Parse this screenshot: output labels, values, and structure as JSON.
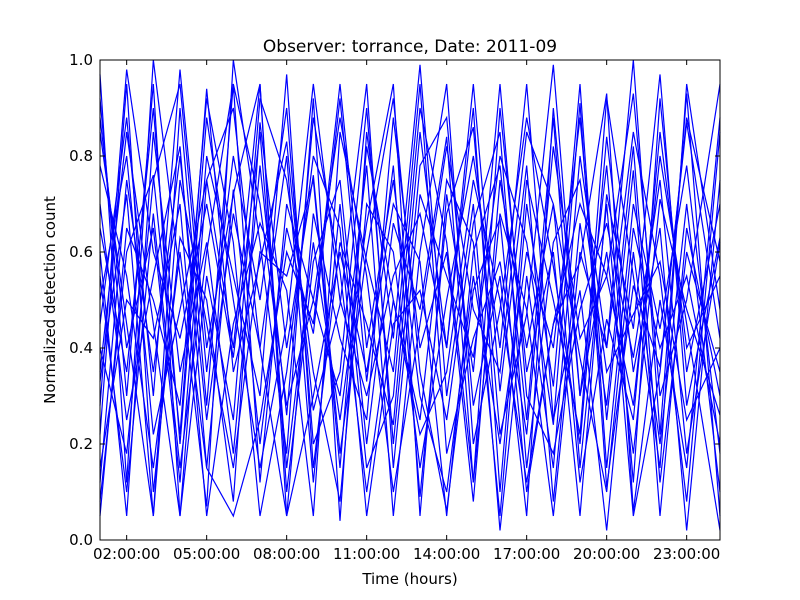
{
  "chart_data": {
    "type": "line",
    "title": "Observer: torrance, Date: 2011-09",
    "xlabel": "Time (hours)",
    "ylabel": "Normalized detection count",
    "x_tick_labels": [
      "02:00:00",
      "05:00:00",
      "08:00:00",
      "11:00:00",
      "14:00:00",
      "17:00:00",
      "20:00:00",
      "23:00:00"
    ],
    "y_tick_labels": [
      "0.0",
      "0.2",
      "0.4",
      "0.6",
      "0.8",
      "1.0"
    ],
    "ylim": [
      0,
      1
    ],
    "xlim_hours": [
      1.0,
      24.25
    ],
    "grid": false,
    "legend": "none",
    "series_color": "#0000ff",
    "x_hours": [
      1.0,
      2.0,
      3.0,
      4.0,
      5.0,
      6.0,
      7.0,
      8.0,
      9.0,
      10.0,
      11.0,
      12.0,
      13.0,
      14.0,
      15.0,
      16.0,
      17.0,
      18.0,
      19.0,
      20.0,
      21.0,
      22.0,
      23.0,
      24.25
    ],
    "series": [
      {
        "values": [
          0.97,
          0.12,
          1.0,
          0.55,
          0.07,
          1.0,
          0.62,
          0.18,
          0.92,
          0.04,
          0.85,
          0.42,
          0.99,
          0.3,
          0.7,
          0.02,
          0.55,
          0.15,
          0.8,
          0.4,
          1.0,
          0.22,
          0.93,
          0.05
        ]
      },
      {
        "values": [
          0.45,
          0.88,
          0.3,
          0.98,
          0.4,
          0.72,
          0.95,
          0.1,
          0.58,
          0.75,
          0.2,
          0.66,
          0.48,
          0.84,
          0.12,
          0.9,
          0.35,
          0.6,
          0.05,
          0.72,
          0.44,
          0.97,
          0.28,
          0.63
        ]
      },
      {
        "values": [
          0.08,
          0.6,
          0.76,
          0.22,
          0.94,
          0.35,
          0.58,
          0.83,
          0.27,
          0.49,
          0.95,
          0.15,
          0.72,
          0.55,
          0.38,
          0.8,
          0.62,
          0.24,
          0.91,
          0.11,
          0.53,
          0.36,
          0.87,
          0.42
        ]
      },
      {
        "values": [
          0.7,
          0.25,
          0.55,
          0.82,
          0.15,
          0.73,
          0.2,
          0.65,
          0.43,
          0.92,
          0.33,
          0.78,
          0.09,
          0.68,
          0.86,
          0.22,
          0.47,
          0.99,
          0.3,
          0.6,
          0.18,
          0.71,
          0.48,
          0.26
        ]
      },
      {
        "values": [
          0.22,
          0.95,
          0.1,
          0.63,
          0.5,
          0.08,
          0.87,
          0.4,
          0.76,
          0.18,
          0.6,
          0.92,
          0.35,
          0.06,
          0.52,
          0.67,
          0.1,
          0.45,
          0.58,
          0.93,
          0.06,
          0.5,
          0.15,
          0.88
        ]
      },
      {
        "values": [
          0.88,
          0.4,
          0.65,
          0.12,
          0.8,
          0.55,
          0.3,
          0.97,
          0.15,
          0.62,
          0.45,
          0.24,
          0.85,
          0.4,
          0.95,
          0.31,
          0.78,
          0.08,
          0.66,
          0.28,
          0.82,
          0.12,
          0.6,
          0.35
        ]
      },
      {
        "values": [
          0.33,
          0.72,
          0.05,
          0.9,
          0.28,
          0.95,
          0.12,
          0.7,
          0.5,
          0.3,
          0.78,
          0.05,
          0.6,
          0.95,
          0.2,
          0.48,
          0.88,
          0.57,
          0.2,
          0.84,
          0.35,
          0.65,
          0.02,
          0.75
        ]
      },
      {
        "values": [
          0.6,
          0.05,
          0.85,
          0.35,
          0.62,
          0.18,
          0.78,
          0.26,
          0.88,
          0.56,
          0.1,
          0.5,
          0.25,
          0.75,
          0.62,
          0.05,
          0.7,
          0.32,
          0.95,
          0.15,
          0.7,
          0.44,
          0.78,
          0.18
        ]
      },
      {
        "values": [
          0.15,
          0.5,
          0.42,
          0.7,
          0.05,
          0.45,
          0.66,
          0.52,
          0.05,
          0.85,
          0.58,
          0.35,
          0.95,
          0.18,
          0.42,
          0.58,
          0.22,
          0.82,
          0.42,
          0.55,
          0.93,
          0.3,
          0.5,
          0.95
        ]
      },
      {
        "values": [
          0.5,
          0.8,
          0.22,
          0.48,
          0.75,
          0.9,
          0.4,
          0.05,
          0.68,
          0.42,
          0.25,
          0.88,
          0.4,
          0.6,
          0.08,
          0.75,
          0.4,
          0.7,
          0.12,
          0.46,
          0.25,
          0.85,
          0.4,
          0.55
        ]
      },
      {
        "values": [
          0.92,
          0.3,
          0.95,
          0.05,
          0.55,
          0.25,
          0.92,
          0.75,
          0.35,
          0.08,
          0.7,
          0.6,
          0.15,
          0.5,
          0.8,
          0.4,
          0.95,
          0.25,
          0.52,
          0.02,
          0.6,
          0.2,
          0.7,
          0.1
        ]
      },
      {
        "values": [
          0.05,
          0.65,
          0.5,
          0.28,
          0.92,
          0.62,
          0.05,
          0.35,
          0.8,
          0.65,
          0.05,
          0.45,
          0.52,
          0.25,
          0.66,
          0.85,
          0.15,
          0.62,
          0.75,
          0.35,
          0.47,
          0.58,
          0.25,
          0.4
        ]
      },
      {
        "values": [
          0.4,
          0.18,
          0.75,
          0.95,
          0.35,
          0.8,
          0.5,
          0.9,
          0.2,
          0.35,
          0.9,
          0.2,
          0.78,
          0.88,
          0.28,
          0.55,
          0.05,
          0.9,
          0.3,
          0.78,
          0.12,
          0.92,
          0.35,
          0.7
        ]
      },
      {
        "values": [
          0.78,
          0.55,
          0.15,
          0.6,
          0.15,
          0.05,
          0.25,
          0.6,
          0.45,
          0.95,
          0.4,
          0.75,
          0.3,
          0.1,
          0.55,
          0.2,
          0.6,
          0.4,
          0.88,
          0.25,
          0.77,
          0.05,
          0.65,
          0.3
        ]
      },
      {
        "values": [
          0.28,
          0.98,
          0.6,
          0.42,
          0.7,
          0.38,
          0.85,
          0.15,
          0.62,
          0.25,
          0.66,
          0.95,
          0.05,
          0.72,
          0.35,
          0.95,
          0.3,
          0.18,
          0.48,
          0.66,
          0.38,
          0.75,
          0.18,
          0.62
        ]
      },
      {
        "values": [
          0.65,
          0.35,
          0.9,
          0.2,
          0.88,
          0.5,
          0.15,
          0.45,
          0.95,
          0.5,
          0.3,
          0.55,
          0.68,
          0.4,
          0.9,
          0.1,
          0.75,
          0.5,
          0.22,
          0.92,
          0.55,
          0.15,
          0.95,
          0.48
        ]
      },
      {
        "values": [
          0.12,
          0.75,
          0.35,
          0.8,
          0.25,
          0.68,
          0.4,
          0.8,
          0.12,
          0.7,
          0.15,
          0.3,
          0.9,
          0.62,
          0.12,
          0.68,
          0.48,
          0.05,
          0.6,
          0.4,
          0.85,
          0.55,
          0.08,
          0.85
        ]
      },
      {
        "values": [
          0.55,
          0.1,
          0.68,
          0.15,
          0.6,
          0.95,
          0.7,
          0.28,
          0.5,
          0.88,
          0.55,
          0.1,
          0.45,
          0.82,
          0.48,
          0.35,
          0.85,
          0.7,
          0.38,
          0.1,
          0.65,
          0.4,
          0.55,
          0.2
        ]
      },
      {
        "values": [
          0.85,
          0.45,
          0.05,
          0.75,
          0.45,
          0.15,
          0.6,
          0.55,
          0.75,
          0.15,
          0.82,
          0.5,
          0.22,
          0.35,
          0.75,
          0.5,
          0.12,
          0.45,
          0.7,
          0.55,
          0.28,
          0.8,
          0.45,
          0.02
        ]
      },
      {
        "values": [
          0.35,
          0.85,
          0.45,
          0.05,
          0.75,
          0.4,
          0.95,
          0.05,
          0.3,
          0.6,
          0.35,
          0.7,
          0.58,
          0.05,
          0.6,
          0.78,
          0.25,
          0.88,
          0.15,
          0.7,
          0.05,
          0.35,
          0.88,
          0.58
        ]
      }
    ]
  }
}
